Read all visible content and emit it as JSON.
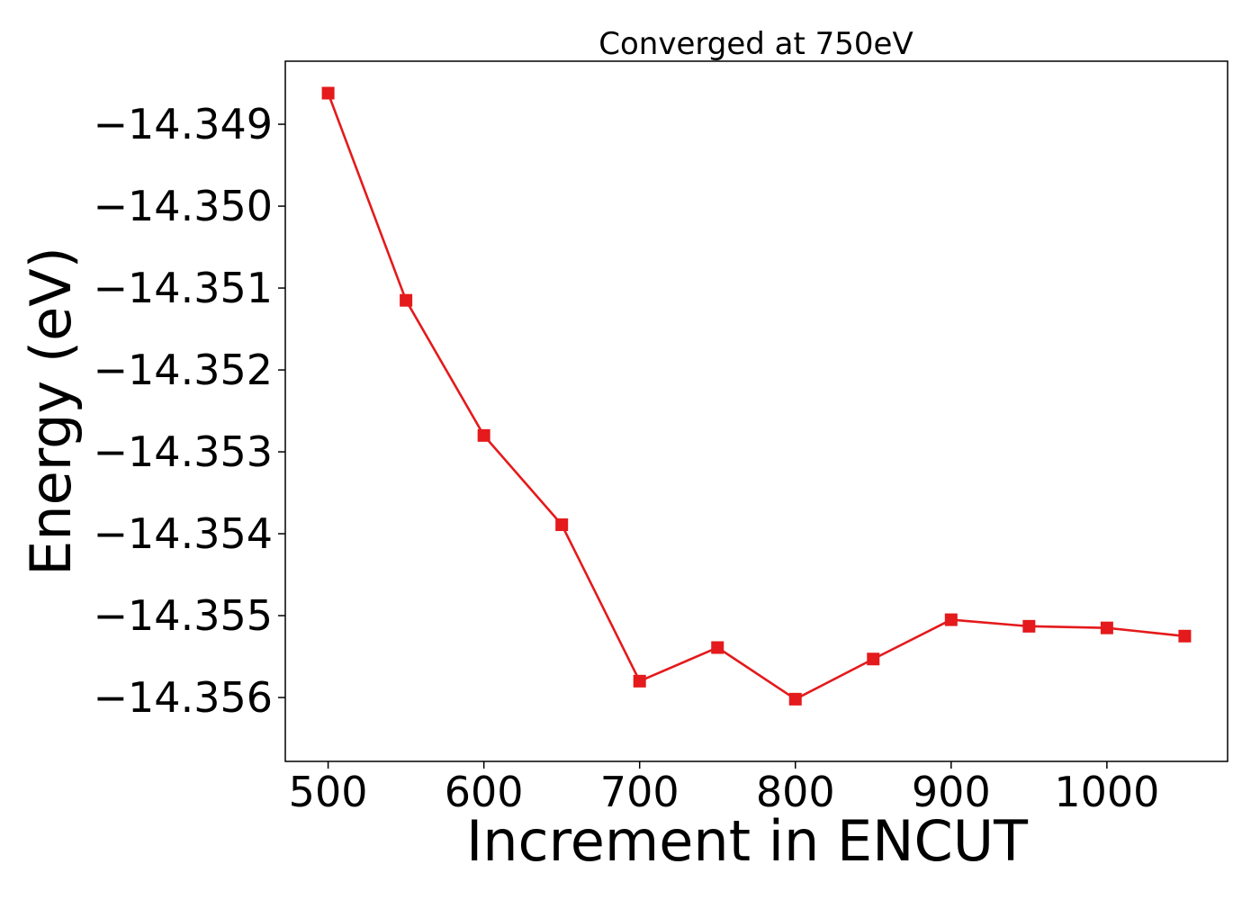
{
  "chart_data": {
    "type": "line",
    "title": "Converged at 750eV",
    "xlabel": "Increment in ENCUT",
    "ylabel": "Energy (eV)",
    "xlim": [
      472.5,
      1077.5
    ],
    "ylim": [
      -14.35678,
      -14.34823
    ],
    "x_ticks": [
      500,
      600,
      700,
      800,
      900,
      1000
    ],
    "x_tick_labels": [
      "500",
      "600",
      "700",
      "800",
      "900",
      "1000"
    ],
    "y_ticks": [
      -14.349,
      -14.35,
      -14.351,
      -14.352,
      -14.353,
      -14.354,
      -14.355,
      -14.356
    ],
    "y_tick_labels": [
      "−14.349",
      "−14.350",
      "−14.351",
      "−14.352",
      "−14.353",
      "−14.354",
      "−14.355",
      "−14.356"
    ],
    "grid": false,
    "legend": "none",
    "series": [
      {
        "color": "#e41a1c",
        "marker": "square",
        "x": [
          500,
          550,
          600,
          650,
          700,
          750,
          800,
          850,
          900,
          950,
          1000,
          1050
        ],
        "y": [
          -14.34862,
          -14.35115,
          -14.3528,
          -14.35389,
          -14.3558,
          -14.35539,
          -14.35602,
          -14.35553,
          -14.35505,
          -14.35513,
          -14.35515,
          -14.35525
        ]
      }
    ]
  }
}
